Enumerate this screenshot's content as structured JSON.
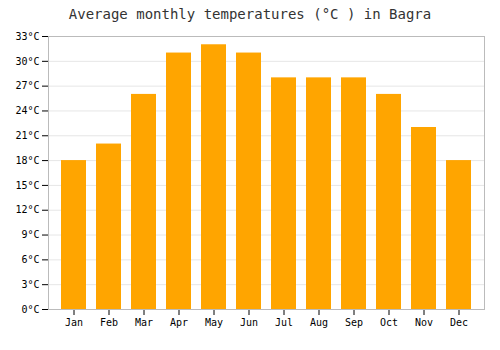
{
  "chart_data": {
    "type": "bar",
    "title": "Average monthly temperatures (°C ) in Bagra",
    "categories": [
      "Jan",
      "Feb",
      "Mar",
      "Apr",
      "May",
      "Jun",
      "Jul",
      "Aug",
      "Sep",
      "Oct",
      "Nov",
      "Dec"
    ],
    "values": [
      18,
      20,
      26,
      31,
      32,
      31,
      28,
      28,
      28,
      26,
      22,
      18
    ],
    "color": "#FFA500",
    "ylim": [
      0,
      33
    ],
    "yticks": [
      {
        "value": 0,
        "label": "0°C"
      },
      {
        "value": 3,
        "label": "3°C"
      },
      {
        "value": 6,
        "label": "6°C"
      },
      {
        "value": 9,
        "label": "9°C"
      },
      {
        "value": 12,
        "label": "12°C"
      },
      {
        "value": 15,
        "label": "15°C"
      },
      {
        "value": 18,
        "label": "18°C"
      },
      {
        "value": 21,
        "label": "21°C"
      },
      {
        "value": 24,
        "label": "24°C"
      },
      {
        "value": 27,
        "label": "27°C"
      },
      {
        "value": 30,
        "label": "30°C"
      },
      {
        "value": 33,
        "label": "33°C"
      }
    ],
    "grid": true
  }
}
